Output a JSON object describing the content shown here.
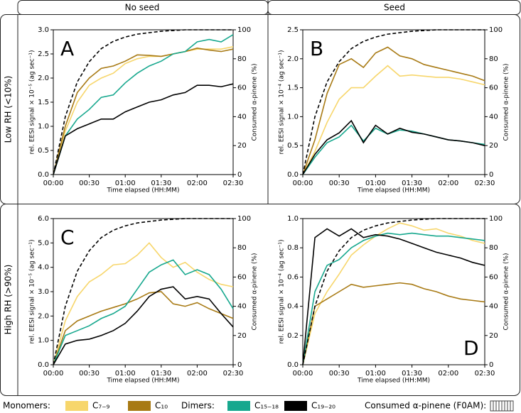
{
  "layout_labels": {
    "columns": [
      "No seed",
      "Seed"
    ],
    "rows": [
      "Low RH (<10%)",
      "High RH (>90%)"
    ],
    "legend_groups": [
      "Monomers:",
      "Dimers:"
    ]
  },
  "chart_data": [
    {
      "type": "line",
      "label": "A",
      "label_corner": "upper left",
      "xlabel": "Time elapsed (HH:MM)",
      "ylabel": "rel. EESI signal × 10⁻⁵ (ag sec⁻¹)",
      "y2label": "Consumed α-pinene (%)",
      "x": [
        0,
        10,
        20,
        30,
        40,
        50,
        60,
        70,
        80,
        90,
        100,
        110,
        120,
        130,
        140,
        150
      ],
      "xlim": [
        0,
        150
      ],
      "xticks": [
        {
          "value": 0,
          "label": "00:00"
        },
        {
          "value": 30,
          "label": "00:30"
        },
        {
          "value": 60,
          "label": "01:00"
        },
        {
          "value": 90,
          "label": "01:30"
        },
        {
          "value": 120,
          "label": "02:00"
        },
        {
          "value": 150,
          "label": "02:30"
        }
      ],
      "ylim": [
        0,
        3
      ],
      "yticks": [
        {
          "value": 0,
          "label": "0.0"
        },
        0.5,
        {
          "value": 1,
          "label": "1.0"
        },
        1.5,
        {
          "value": 2,
          "label": "2.0"
        },
        2.5,
        {
          "value": 3,
          "label": "3.0"
        }
      ],
      "y2lim": [
        0,
        100
      ],
      "y2ticks": [
        0,
        20,
        40,
        60,
        80,
        100
      ],
      "series": [
        {
          "name": "C₇₋₉",
          "color": "#f7d66b",
          "values": [
            0,
            0.9,
            1.5,
            1.85,
            2.0,
            2.1,
            2.3,
            2.4,
            2.45,
            2.45,
            2.5,
            2.55,
            2.6,
            2.6,
            2.6,
            2.65
          ]
        },
        {
          "name": "C₁₀",
          "color": "#a87a14",
          "values": [
            0,
            1.0,
            1.7,
            2.0,
            2.2,
            2.25,
            2.35,
            2.48,
            2.47,
            2.45,
            2.5,
            2.55,
            2.62,
            2.58,
            2.55,
            2.6
          ]
        },
        {
          "name": "C₁₅₋₁₈",
          "color": "#17a88e",
          "values": [
            0,
            0.8,
            1.15,
            1.35,
            1.6,
            1.65,
            1.9,
            2.1,
            2.25,
            2.35,
            2.5,
            2.55,
            2.75,
            2.8,
            2.75,
            2.9
          ]
        },
        {
          "name": "C₁₉₋₂₀",
          "color": "#000000",
          "values": [
            0,
            0.8,
            0.95,
            1.05,
            1.15,
            1.15,
            1.3,
            1.4,
            1.5,
            1.55,
            1.65,
            1.7,
            1.85,
            1.85,
            1.82,
            1.88
          ]
        },
        {
          "name": "Consumed α-pinene (F0AM):",
          "color": "#000000",
          "axis": "y2",
          "values": [
            0,
            40,
            64,
            78,
            87,
            92,
            95,
            97,
            98,
            99,
            99.5,
            100,
            100,
            100,
            100,
            100
          ]
        }
      ]
    },
    {
      "type": "line",
      "label": "B",
      "label_corner": "upper left",
      "xlabel": "Time elapsed (HH:MM)",
      "ylabel": "rel. EESI signal × 10⁻⁴ (ag sec⁻¹)",
      "y2label": "Consumed α-pinene (%)",
      "x": [
        0,
        10,
        20,
        30,
        40,
        50,
        60,
        70,
        80,
        90,
        100,
        110,
        120,
        130,
        140,
        150
      ],
      "xlim": [
        0,
        150
      ],
      "xticks": [
        {
          "value": 0,
          "label": "00:00"
        },
        {
          "value": 30,
          "label": "00:30"
        },
        {
          "value": 60,
          "label": "01:00"
        },
        {
          "value": 90,
          "label": "01:30"
        },
        {
          "value": 120,
          "label": "02:00"
        },
        {
          "value": 150,
          "label": "02:30"
        }
      ],
      "ylim": [
        0,
        2.5
      ],
      "yticks": [
        {
          "value": 0,
          "label": "0.0"
        },
        0.5,
        {
          "value": 1,
          "label": "1.0"
        },
        1.5,
        {
          "value": 2,
          "label": "2.0"
        },
        2.5
      ],
      "y2lim": [
        0,
        100
      ],
      "y2ticks": [
        0,
        20,
        40,
        60,
        80,
        100
      ],
      "series": [
        {
          "name": "C₇₋₉",
          "color": "#f7d66b",
          "values": [
            0,
            0.4,
            0.9,
            1.3,
            1.5,
            1.5,
            1.7,
            1.88,
            1.7,
            1.72,
            1.7,
            1.68,
            1.68,
            1.65,
            1.6,
            1.55
          ]
        },
        {
          "name": "C₁₀",
          "color": "#a87a14",
          "values": [
            0,
            0.6,
            1.4,
            1.9,
            2.0,
            1.85,
            2.1,
            2.2,
            2.05,
            2.0,
            1.9,
            1.85,
            1.8,
            1.75,
            1.7,
            1.62
          ]
        },
        {
          "name": "C₁₅₋₁₈",
          "color": "#17a88e",
          "values": [
            0,
            0.3,
            0.55,
            0.65,
            0.85,
            0.58,
            0.8,
            0.7,
            0.77,
            0.75,
            0.7,
            0.65,
            0.6,
            0.58,
            0.55,
            0.52
          ]
        },
        {
          "name": "C₁₉₋₂₀",
          "color": "#000000",
          "values": [
            0,
            0.35,
            0.6,
            0.72,
            0.93,
            0.55,
            0.85,
            0.7,
            0.8,
            0.73,
            0.7,
            0.65,
            0.6,
            0.58,
            0.55,
            0.5
          ]
        },
        {
          "name": "Consumed α-pinene (F0AM):",
          "color": "#000000",
          "axis": "y2",
          "values": [
            0,
            40,
            64,
            78,
            87,
            92,
            95,
            97,
            98,
            99,
            99.5,
            100,
            100,
            100,
            100,
            100
          ]
        }
      ]
    },
    {
      "type": "line",
      "label": "C",
      "label_corner": "upper left",
      "xlabel": "Time elapsed (HH:MM)",
      "ylabel": "rel. EESI signal × 10⁻⁵ (ag sec⁻¹)",
      "y2label": "Consumed α-pinene (%)",
      "x": [
        0,
        10,
        20,
        30,
        40,
        50,
        60,
        70,
        80,
        90,
        100,
        110,
        120,
        130,
        140,
        150
      ],
      "xlim": [
        0,
        150
      ],
      "xticks": [
        {
          "value": 0,
          "label": "00:00"
        },
        {
          "value": 30,
          "label": "00:30"
        },
        {
          "value": 60,
          "label": "01:00"
        },
        {
          "value": 90,
          "label": "01:30"
        },
        {
          "value": 120,
          "label": "02:00"
        },
        {
          "value": 150,
          "label": "02:30"
        }
      ],
      "ylim": [
        0,
        6
      ],
      "yticks": [
        {
          "value": 0,
          "label": "0.0"
        },
        {
          "value": 1,
          "label": "1.0"
        },
        {
          "value": 2,
          "label": "2.0"
        },
        {
          "value": 3,
          "label": "3.0"
        },
        {
          "value": 4,
          "label": "4.0"
        },
        {
          "value": 5,
          "label": "5.0"
        },
        {
          "value": 6,
          "label": "6.0"
        }
      ],
      "y2lim": [
        0,
        100
      ],
      "y2ticks": [
        0,
        20,
        40,
        60,
        80,
        100
      ],
      "series": [
        {
          "name": "C₇₋₉",
          "color": "#f7d66b",
          "values": [
            0,
            1.8,
            2.8,
            3.4,
            3.7,
            4.1,
            4.15,
            4.5,
            5.0,
            4.4,
            4.0,
            4.2,
            3.8,
            3.5,
            3.3,
            3.2
          ]
        },
        {
          "name": "C₁₀",
          "color": "#a87a14",
          "values": [
            0,
            1.4,
            1.8,
            2.0,
            2.2,
            2.35,
            2.5,
            2.7,
            2.95,
            3.0,
            2.5,
            2.4,
            2.55,
            2.3,
            2.1,
            1.9
          ]
        },
        {
          "name": "C₁₅₋₁₈",
          "color": "#17a88e",
          "values": [
            0,
            1.2,
            1.4,
            1.6,
            1.9,
            2.1,
            2.4,
            3.1,
            3.8,
            4.1,
            4.3,
            3.7,
            3.9,
            3.7,
            3.1,
            2.3
          ]
        },
        {
          "name": "C₁₉₋₂₀",
          "color": "#000000",
          "values": [
            0,
            0.85,
            1.0,
            1.05,
            1.2,
            1.4,
            1.7,
            2.2,
            2.8,
            3.1,
            3.2,
            2.7,
            2.8,
            2.7,
            2.1,
            1.55
          ]
        },
        {
          "name": "Consumed α-pinene (F0AM):",
          "color": "#000000",
          "axis": "y2",
          "values": [
            0,
            40,
            64,
            78,
            87,
            92,
            95,
            97,
            98,
            99,
            99.5,
            100,
            100,
            100,
            100,
            100
          ]
        }
      ]
    },
    {
      "type": "line",
      "label": "D",
      "label_corner": "lower right",
      "xlabel": "Time elapsed (HH:MM)",
      "ylabel": "rel. EESI signal × 10⁻⁴ (ag sec⁻¹)",
      "y2label": "Consumed α-pinene (%)",
      "x": [
        0,
        10,
        20,
        30,
        40,
        50,
        60,
        70,
        80,
        90,
        100,
        110,
        120,
        130,
        140,
        150
      ],
      "xlim": [
        0,
        150
      ],
      "xticks": [
        {
          "value": 0,
          "label": "00:00"
        },
        {
          "value": 30,
          "label": "00:30"
        },
        {
          "value": 60,
          "label": "01:00"
        },
        {
          "value": 90,
          "label": "01:30"
        },
        {
          "value": 120,
          "label": "02:00"
        },
        {
          "value": 150,
          "label": "02:30"
        }
      ],
      "ylim": [
        0,
        1
      ],
      "yticks": [
        {
          "value": 0,
          "label": "0.0"
        },
        0.2,
        0.4,
        0.6,
        0.8,
        {
          "value": 1,
          "label": "1.0"
        }
      ],
      "y2lim": [
        0,
        100
      ],
      "y2ticks": [
        0,
        20,
        40,
        60,
        80,
        100
      ],
      "series": [
        {
          "name": "C₇₋₉",
          "color": "#f7d66b",
          "values": [
            0,
            0.35,
            0.5,
            0.62,
            0.75,
            0.82,
            0.88,
            0.93,
            0.97,
            0.95,
            0.92,
            0.93,
            0.9,
            0.88,
            0.85,
            0.83
          ]
        },
        {
          "name": "C₁₀",
          "color": "#a87a14",
          "values": [
            0,
            0.4,
            0.45,
            0.5,
            0.55,
            0.53,
            0.54,
            0.55,
            0.56,
            0.55,
            0.52,
            0.5,
            0.47,
            0.45,
            0.44,
            0.43
          ]
        },
        {
          "name": "C₁₅₋₁₈",
          "color": "#17a88e",
          "values": [
            0,
            0.5,
            0.68,
            0.72,
            0.8,
            0.85,
            0.88,
            0.9,
            0.89,
            0.9,
            0.89,
            0.88,
            0.88,
            0.87,
            0.86,
            0.85
          ]
        },
        {
          "name": "C₁₉₋₂₀",
          "color": "#000000",
          "values": [
            0,
            0.87,
            0.93,
            0.88,
            0.93,
            0.87,
            0.89,
            0.88,
            0.86,
            0.83,
            0.8,
            0.77,
            0.75,
            0.73,
            0.7,
            0.68
          ]
        },
        {
          "name": "Consumed α-pinene (F0AM):",
          "color": "#000000",
          "axis": "y2",
          "values": [
            0,
            40,
            64,
            78,
            87,
            92,
            95,
            97,
            98,
            99,
            99.5,
            100,
            100,
            100,
            100,
            100
          ]
        }
      ]
    }
  ]
}
